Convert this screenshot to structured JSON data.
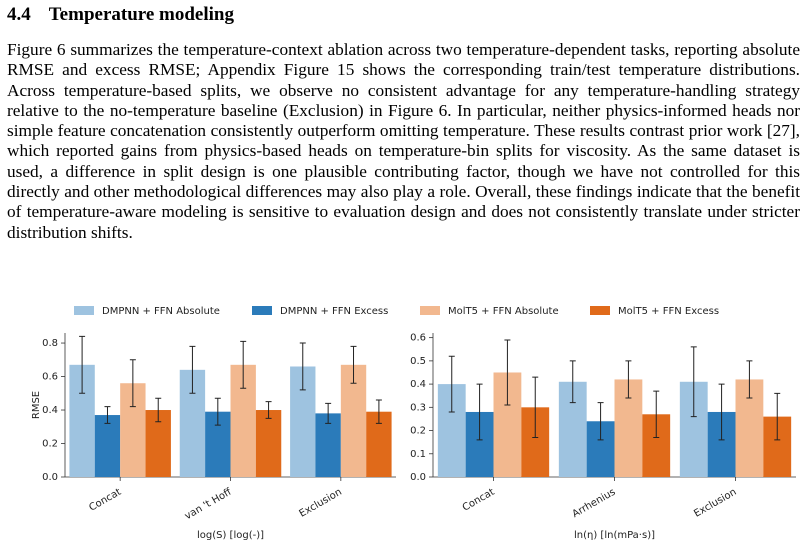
{
  "section": {
    "number": "4.4",
    "title": "Temperature modeling"
  },
  "paragraph": "Figure 6 summarizes the temperature-context ablation across two temperature-dependent tasks, reporting absolute RMSE and excess RMSE; Appendix Figure 15 shows the corresponding train/test temperature distributions. Across temperature-based splits, we observe no consistent advantage for any temperature-handling strategy relative to the no-temperature baseline (Exclusion) in Figure 6. In particular, neither physics-informed heads nor simple feature concatenation consistently outperform omitting temperature. These results contrast prior work [27], which reported gains from physics-based heads on temperature-bin splits for viscosity. As the same dataset is used, a difference in split design is one plausible contributing factor, though we have not controlled for this directly and other methodological differences may also play a role. Overall, these findings indicate that the benefit of temperature-aware modeling is sensitive to evaluation design and does not consistently translate under stricter distribution shifts.",
  "chart_data": [
    {
      "type": "bar",
      "ylabel": "RMSE",
      "xlabel": "log(S) [log(-)]",
      "categories": [
        "Concat",
        "van 't Hoff",
        "Exclusion"
      ],
      "ylim": [
        0,
        0.86
      ],
      "yticks": [
        {
          "value": 0,
          "label": "0.0"
        },
        0.2,
        0.4,
        0.6,
        0.8
      ],
      "series": [
        {
          "name": "DMPNN + FFN Absolute",
          "color": "#9ec3e0",
          "values": [
            0.67,
            0.64,
            0.66
          ],
          "errors": [
            0.17,
            0.14,
            0.14
          ]
        },
        {
          "name": "DMPNN + FFN Excess",
          "color": "#2b7bba",
          "values": [
            0.37,
            0.39,
            0.38
          ],
          "errors": [
            0.05,
            0.08,
            0.06
          ]
        },
        {
          "name": "MolT5 + FFN Absolute",
          "color": "#f2b88f",
          "values": [
            0.56,
            0.67,
            0.67
          ],
          "errors": [
            0.14,
            0.14,
            0.11
          ]
        },
        {
          "name": "MolT5 + FFN Excess",
          "color": "#e06a1a",
          "values": [
            0.4,
            0.4,
            0.39
          ],
          "errors": [
            0.07,
            0.05,
            0.07
          ]
        }
      ]
    },
    {
      "type": "bar",
      "xlabel": "ln(η) [ln(mPa·s)]",
      "categories": [
        "Concat",
        "Arrhenius",
        "Exclusion"
      ],
      "ylim": [
        0,
        0.62
      ],
      "yticks": [
        {
          "value": 0,
          "label": "0.0"
        },
        0.1,
        0.2,
        0.3,
        0.4,
        0.5,
        0.6
      ],
      "series": [
        {
          "values": [
            0.4,
            0.41,
            0.41
          ],
          "errors": [
            0.12,
            0.09,
            0.15
          ]
        },
        {
          "values": [
            0.28,
            0.24,
            0.28
          ],
          "errors": [
            0.12,
            0.08,
            0.12
          ]
        },
        {
          "values": [
            0.45,
            0.42,
            0.42
          ],
          "errors": [
            0.14,
            0.08,
            0.08
          ]
        },
        {
          "values": [
            0.3,
            0.27,
            0.26
          ],
          "errors": [
            0.13,
            0.1,
            0.1
          ]
        }
      ]
    }
  ]
}
